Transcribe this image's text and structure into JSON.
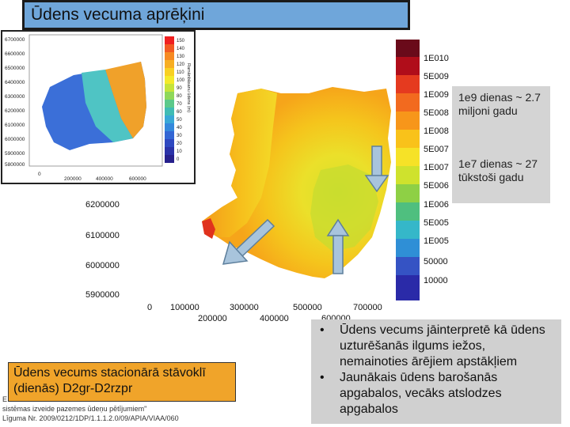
{
  "title": "Ūdens vecuma aprēķini",
  "legend": {
    "labels": [
      "1E010",
      "5E009",
      "1E009",
      "5E008",
      "1E008",
      "5E007",
      "1E007",
      "5E006",
      "1E006",
      "5E005",
      "1E005",
      "50000",
      "10000"
    ],
    "colors": [
      "#6a0a1a",
      "#b00d1a",
      "#e53a1f",
      "#f26a1f",
      "#f7961a",
      "#f9c21a",
      "#f6e227",
      "#cfe22d",
      "#8ed045",
      "#4fbf7f",
      "#35b7c9",
      "#2f8fd6",
      "#3553c4",
      "#2a2aa8"
    ]
  },
  "main_axes": {
    "y_ticks": [
      "6200000",
      "6100000",
      "6000000",
      "5900000"
    ],
    "x_ticks_top": [
      "0",
      "100000",
      "300000",
      "500000",
      "700000"
    ],
    "x_ticks_bottom": [
      "200000",
      "400000",
      "600000"
    ]
  },
  "inset": {
    "y_ticks": [
      "6700000",
      "6600000",
      "6500000",
      "6400000",
      "6300000",
      "6200000",
      "6100000",
      "6000000",
      "5900000",
      "5800000"
    ],
    "x_ticks": [
      "0",
      "200000",
      "400000",
      "600000"
    ],
    "scale_labels": [
      "150",
      "140",
      "130",
      "120",
      "110",
      "100",
      "90",
      "80",
      "70",
      "60",
      "50",
      "40",
      "30",
      "20",
      "10",
      "0"
    ],
    "scale_title": "Ramānbāsanu ūdens (m)"
  },
  "callouts": {
    "c1": "1e9 dienas ~ 2.7 miljoni gadu",
    "c2": "1e7 dienas ~ 27 tūkstoši gadu"
  },
  "caption": "Ūdens vecums stacionārā stāvoklī (dienās) D2gr-D2rzpr",
  "footnotes": {
    "f1": "E",
    "f2": "sistēmas izveide pazemes ūdeņu pētījumiem\"",
    "f3": "Līguma Nr. 2009/0212/1DP/1.1.1.2.0/09/APIA/VIAA/060"
  },
  "bullets": [
    "Ūdens vecums jāinterpretē kā ūdens uzturēšanās ilgums iežos, nemainoties ārējiem apstākļiem",
    "Jaunākais ūdens barošanās apgabalos, vecāks atslodzes apgabalos"
  ]
}
